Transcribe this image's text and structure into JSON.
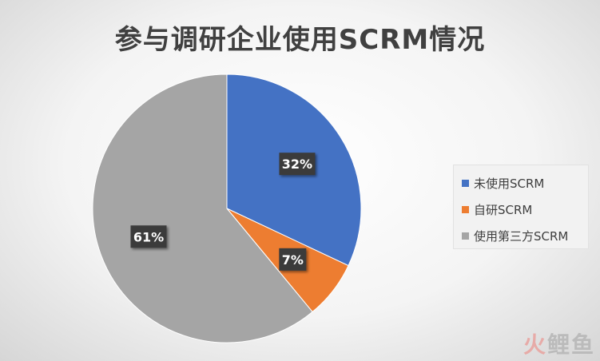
{
  "chart_data": {
    "type": "pie",
    "title": "参与调研企业使用SCRM情况",
    "categories": [
      "未使用SCRM",
      "自研SCRM",
      "使用第三方SCRM"
    ],
    "values": [
      32,
      7,
      61
    ],
    "unit": "%",
    "colors": [
      "#4472c4",
      "#ed7d31",
      "#a5a5a5"
    ],
    "labels": [
      "32%",
      "7%",
      "61%"
    ],
    "legend_position": "right",
    "data_label_style": {
      "background": "#3a3a3a",
      "color": "#ffffff"
    }
  },
  "watermark": {
    "fire": "火",
    "rest": "鲤鱼"
  }
}
